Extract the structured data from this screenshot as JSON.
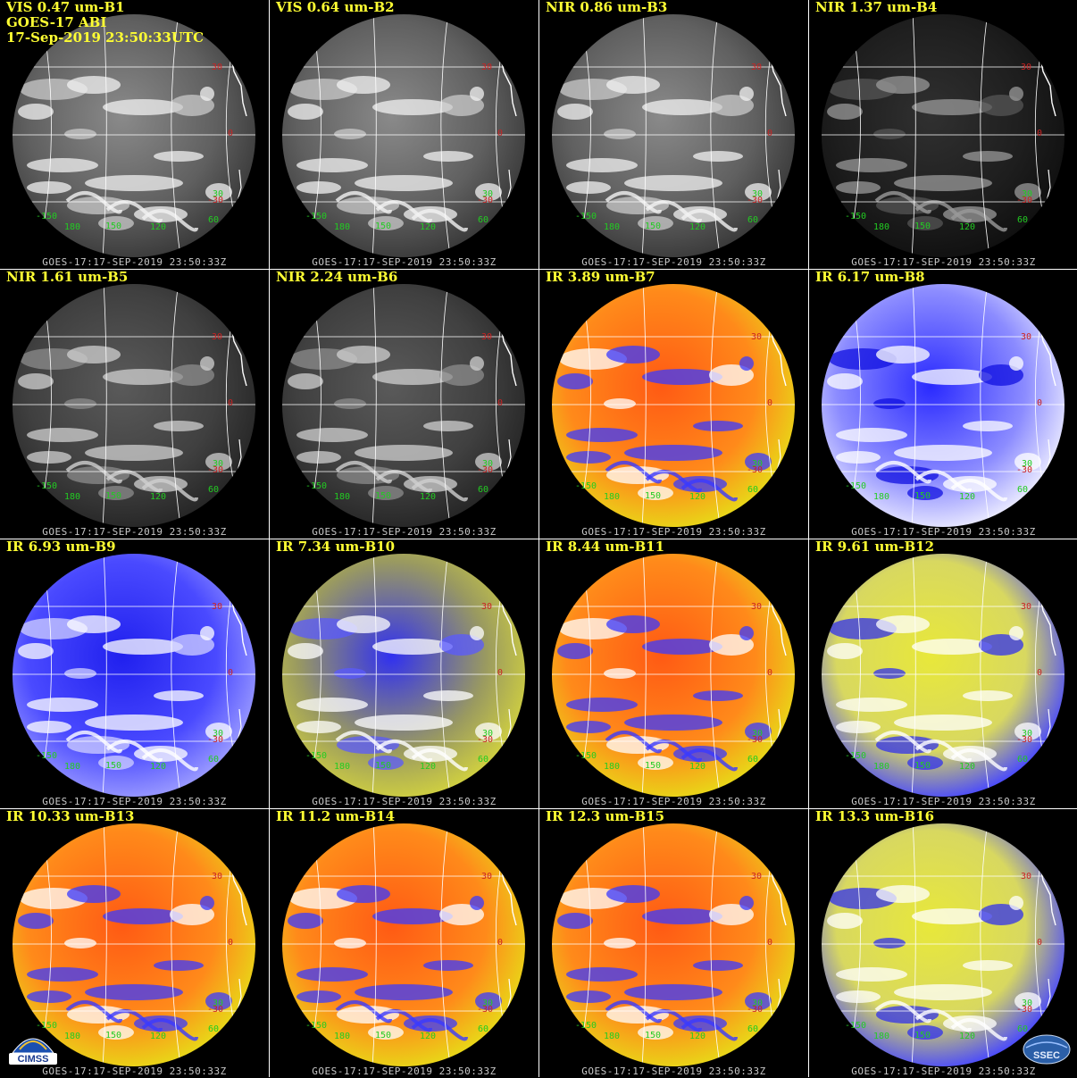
{
  "header": {
    "satellite": "GOES-17 ABI",
    "datetime": "17-Sep-2019 23:50:33UTC"
  },
  "timestamp": "GOES-17:17-SEP-2019 23:50:33Z",
  "grid_labels": {
    "lat": [
      "30",
      "0",
      "-30"
    ],
    "lon": [
      "-150",
      "180",
      "150",
      "120",
      "60"
    ],
    "lat_extra": "30"
  },
  "panels": [
    {
      "label": "VIS 0.47 um-B1",
      "style": "vis"
    },
    {
      "label": "VIS 0.64 um-B2",
      "style": "vis"
    },
    {
      "label": "NIR 0.86 um-B3",
      "style": "vis"
    },
    {
      "label": "NIR 1.37 um-B4",
      "style": "dark"
    },
    {
      "label": "NIR 1.61 um-B5",
      "style": "nir"
    },
    {
      "label": "NIR 2.24 um-B6",
      "style": "nir"
    },
    {
      "label": "IR 3.89 um-B7",
      "style": "ir-warm"
    },
    {
      "label": "IR 6.17 um-B8",
      "style": "wv-white"
    },
    {
      "label": "IR 6.93 um-B9",
      "style": "wv-blue"
    },
    {
      "label": "IR 7.34 um-B10",
      "style": "wv-yellow"
    },
    {
      "label": "IR 8.44 um-B11",
      "style": "ir-warm"
    },
    {
      "label": "IR 9.61 um-B12",
      "style": "ir-yellow"
    },
    {
      "label": "IR 10.33 um-B13",
      "style": "ir-warm"
    },
    {
      "label": "IR 11.2 um-B14",
      "style": "ir-warm"
    },
    {
      "label": "IR 12.3 um-B15",
      "style": "ir-warm"
    },
    {
      "label": "IR 13.3 um-B16",
      "style": "ir-yellow"
    }
  ],
  "logos": {
    "left": "CIMSS",
    "right": "SSEC"
  },
  "colors": {
    "label": "#ffff33",
    "timestamp": "#c8c8c8",
    "lat_label": "#cc2222",
    "lon_label": "#22cc22",
    "grid": "#ffffff"
  }
}
